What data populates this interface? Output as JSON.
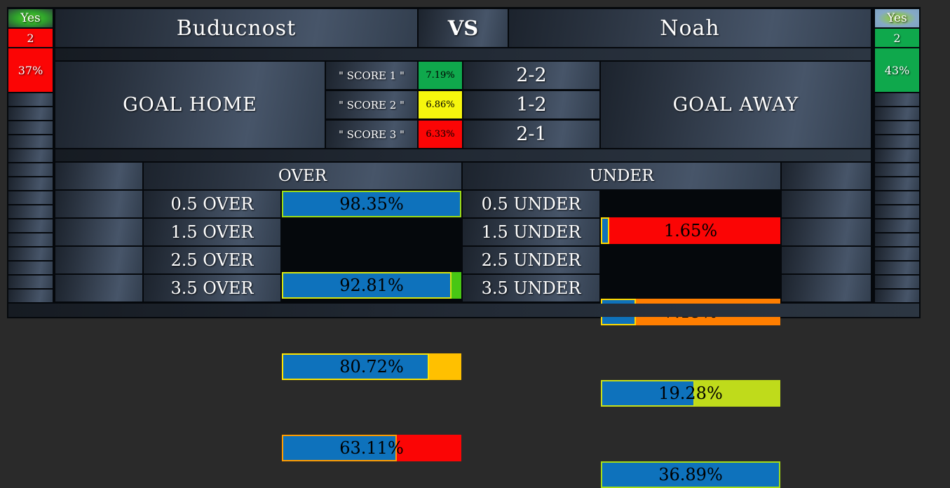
{
  "header": {
    "home_team": "Buducnost",
    "vs": "VS",
    "away_team": "Noah",
    "left_badge": {
      "yes": "Yes",
      "value": "2",
      "percent": "37%",
      "color": "#fb0505"
    },
    "right_badge": {
      "yes": "Yes",
      "value": "2",
      "percent": "43%",
      "color": "#0fa84c"
    }
  },
  "goal_section": {
    "home_label": "GOAL HOME",
    "away_label": "GOAL AWAY",
    "score_rows": [
      {
        "label": "\" SCORE 1 \"",
        "percent": "7.19%",
        "percent_bg": "#0fa84c",
        "score": "2-2"
      },
      {
        "label": "\" SCORE 2 \"",
        "percent": "6.86%",
        "percent_bg": "#f6f60d",
        "score": "1-2"
      },
      {
        "label": "\" SCORE 3 \"",
        "percent": "6.33%",
        "percent_bg": "#fb0505",
        "score": "2-1"
      }
    ]
  },
  "totals_table": {
    "over_header": "OVER",
    "under_header": "UNDER",
    "bar_fill_color": "#0e72bc",
    "over_rows": [
      {
        "label": "0.5 OVER",
        "value": "98.35%",
        "fill_pct": 100,
        "border_color": "#9edc15",
        "track_color": "#3fc31c"
      },
      {
        "label": "1.5 OVER",
        "value": "92.81%",
        "fill_pct": 94.4,
        "border_color": "#d8e511",
        "track_color": "#47c714"
      },
      {
        "label": "2.5 OVER",
        "value": "80.72%",
        "fill_pct": 82.1,
        "border_color": "#ffe400",
        "track_color": "#ffc000"
      },
      {
        "label": "3.5 OVER",
        "value": "63.11%",
        "fill_pct": 64.2,
        "border_color": "#ff9c00",
        "track_color": "#fb0505"
      }
    ],
    "under_rows": [
      {
        "label": "0.5 UNDER",
        "value": "1.65%",
        "fill_pct": 4.5,
        "border_color": "#ffd900",
        "track_color": "#fb0505"
      },
      {
        "label": "1.5 UNDER",
        "value": "7.19%",
        "fill_pct": 19.5,
        "border_color": "#ffd900",
        "track_color": "#ff7e00"
      },
      {
        "label": "2.5 UNDER",
        "value": "19.28%",
        "fill_pct": 52.3,
        "border_color": "#c8df18",
        "track_color": "#bfdb1b"
      },
      {
        "label": "3.5 UNDER",
        "value": "36.89%",
        "fill_pct": 100,
        "border_color": "#a5dc16",
        "track_color": "#bfdb1b"
      }
    ]
  }
}
